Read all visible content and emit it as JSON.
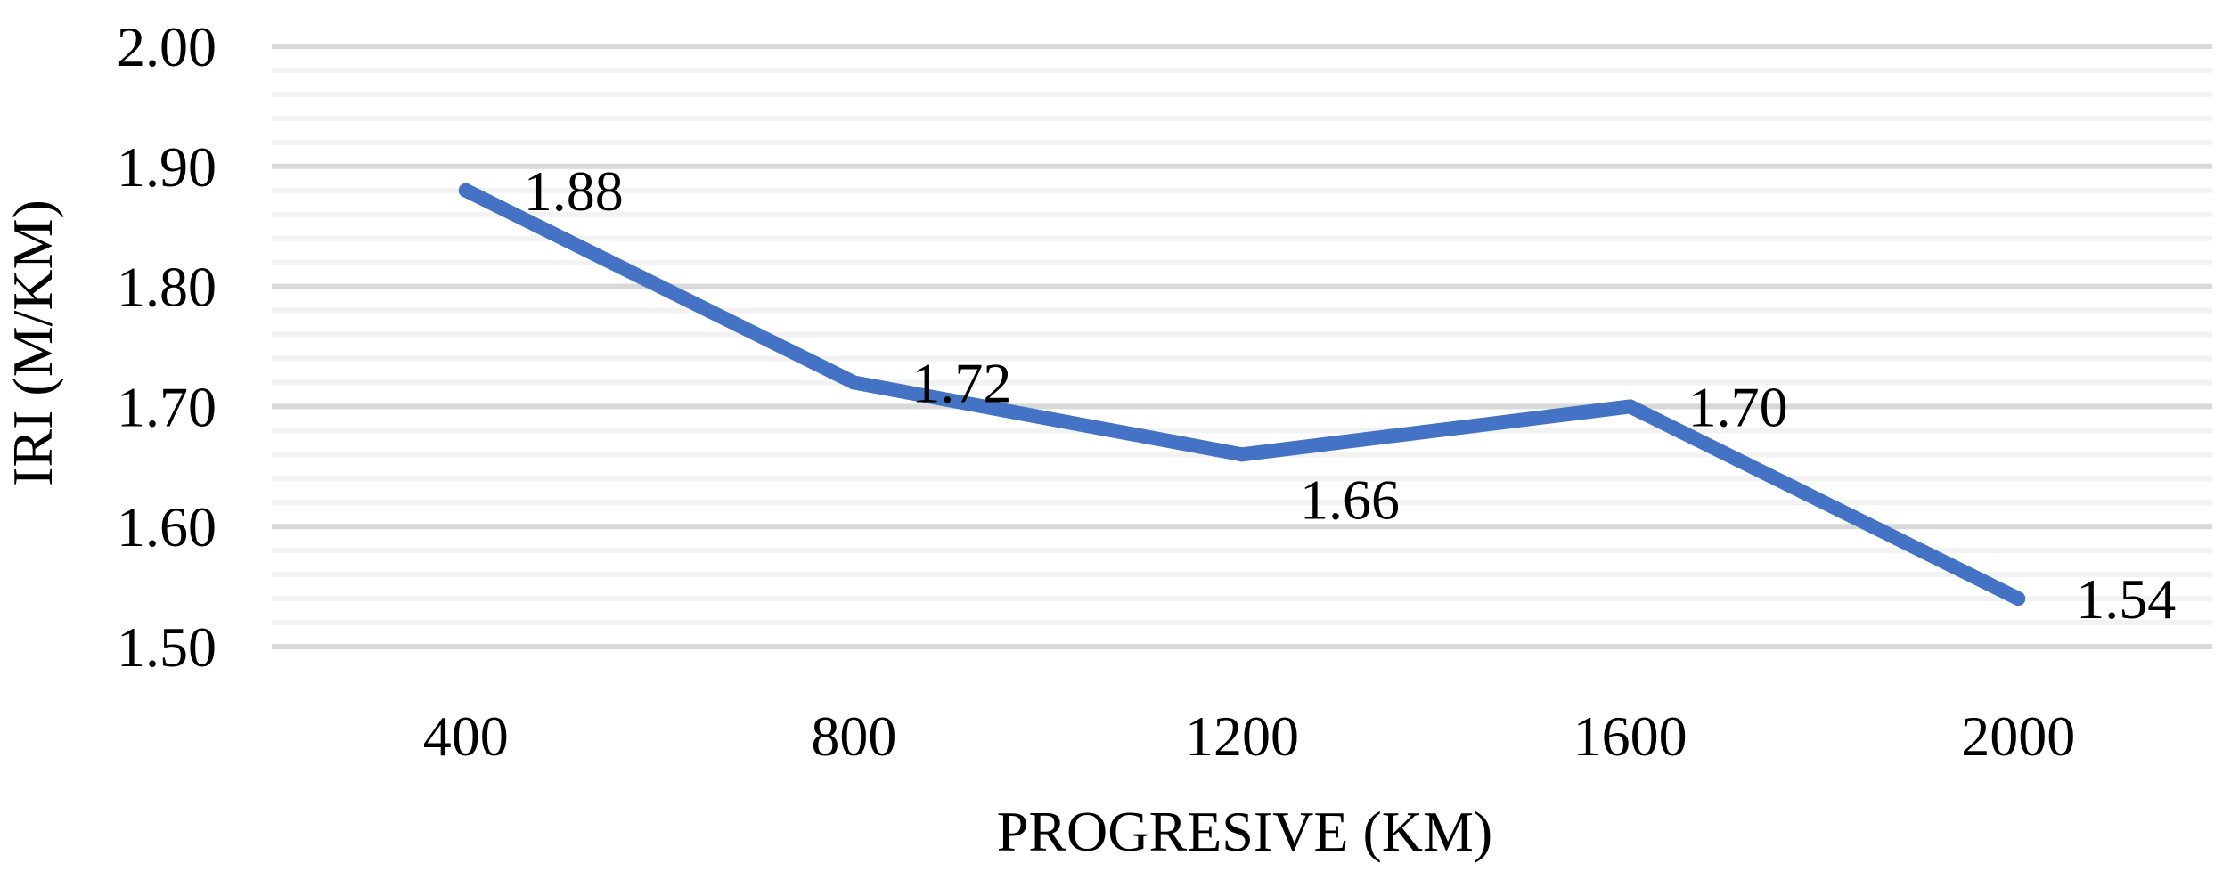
{
  "chart_data": {
    "type": "line",
    "categories": [
      "400",
      "800",
      "1200",
      "1600",
      "2000"
    ],
    "series": [
      {
        "values": [
          1.88,
          1.72,
          1.66,
          1.7,
          1.54
        ]
      }
    ],
    "data_labels": [
      "1.88",
      "1.72",
      "1.66",
      "1.70",
      "1.54"
    ],
    "y_ticks": [
      "1.50",
      "1.60",
      "1.70",
      "1.80",
      "1.90",
      "2.00"
    ],
    "ylim": [
      1.5,
      2.0
    ],
    "minor_step": 0.02,
    "xlabel": "PROGRESIVE (KM)",
    "ylabel": "IRI (M/KM)",
    "title": "",
    "grid": true,
    "legend": "none",
    "colors": {
      "line": "#4472C4",
      "major_grid": "#D9D9D9",
      "minor_grid": "#F2F2F2"
    }
  }
}
